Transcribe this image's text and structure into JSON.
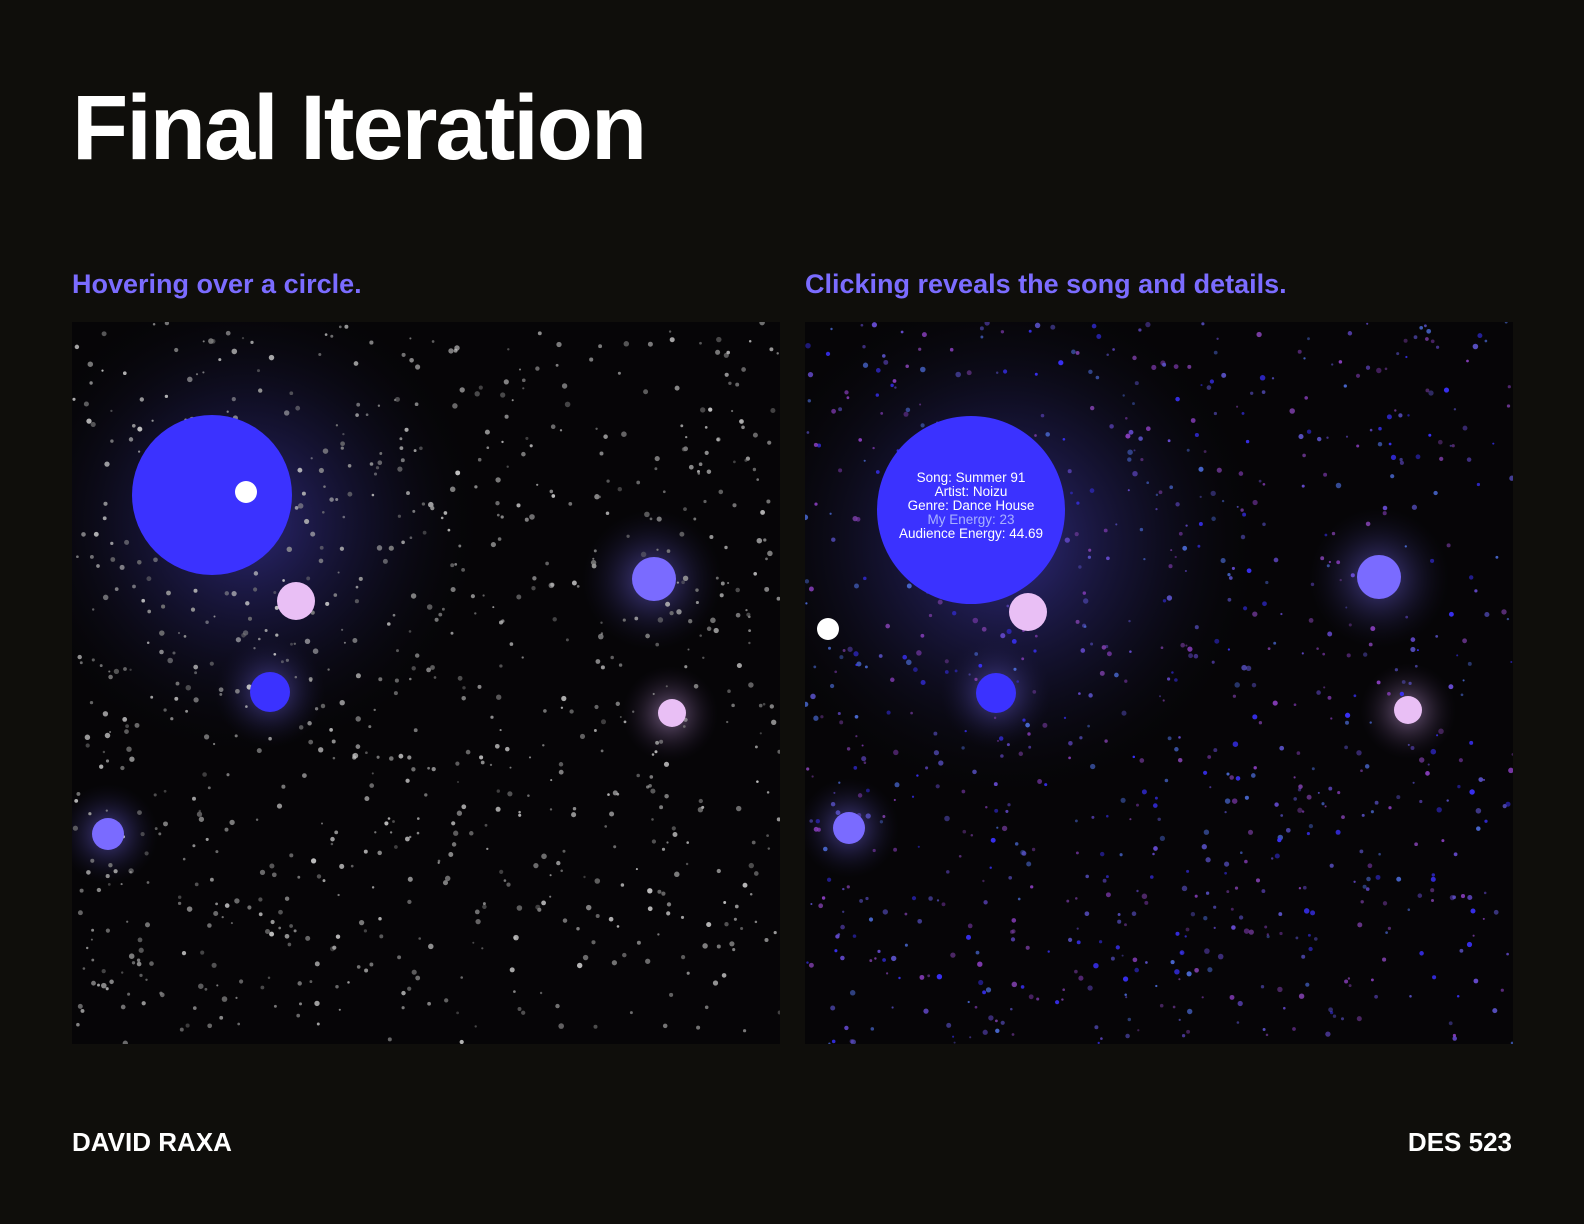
{
  "title": "Final Iteration",
  "captions": {
    "left": "Hovering over a circle.",
    "right": "Clicking reveals the song and details."
  },
  "song_details": {
    "song": "Song: Summer 91",
    "artist": "Artist: Noizu",
    "genre": "Genre: Dance House",
    "my_energy": "My Energy: 23",
    "audience_energy": "Audience Energy: 44.69"
  },
  "footer": {
    "author": "DAVID RAXA",
    "course": "DES 523"
  },
  "colors": {
    "background": "#0f0e0b",
    "panel": "#060507",
    "accent": "#7b6cff",
    "circle_blue": "#3b32ff",
    "circle_violet": "#7a6bff",
    "circle_lilac": "#e9bff5",
    "star_gray": "#9a9a9a",
    "star_purple": "#6a4ed8"
  }
}
